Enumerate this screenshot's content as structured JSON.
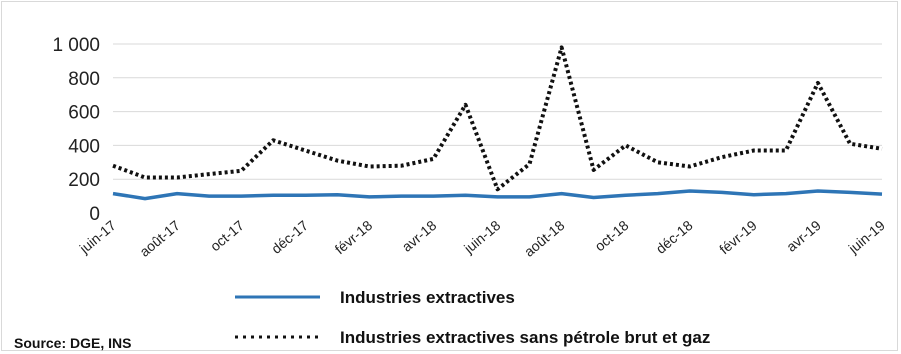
{
  "source": "Source: DGE, INS",
  "chart_data": {
    "type": "line",
    "title": "",
    "xlabel": "",
    "ylabel": "",
    "ylim": [
      0,
      1000
    ],
    "yticks": [
      "0",
      "200",
      "400",
      "600",
      "800",
      "1 000"
    ],
    "grid": true,
    "legend_position": "bottom",
    "x": [
      "juin-17",
      "juil-17",
      "août-17",
      "sept-17",
      "oct-17",
      "nov-17",
      "déc-17",
      "janv-18",
      "févr-18",
      "mars-18",
      "avr-18",
      "mai-18",
      "juin-18",
      "juil-18",
      "août-18",
      "sept-18",
      "oct-18",
      "nov-18",
      "déc-18",
      "janv-19",
      "févr-19",
      "mars-19",
      "avr-19",
      "mai-19",
      "juin-19"
    ],
    "x_tick_labels": [
      "juin-17",
      "août-17",
      "oct-17",
      "déc-17",
      "févr-18",
      "avr-18",
      "juin-18",
      "août-18",
      "oct-18",
      "déc-18",
      "févr-19",
      "avr-19",
      "juin-19"
    ],
    "series": [
      {
        "name": "Industries extractives",
        "color": "#2e75b6",
        "style": "solid",
        "values": [
          115,
          85,
          115,
          100,
          100,
          105,
          105,
          108,
          95,
          100,
          100,
          105,
          95,
          95,
          115,
          92,
          105,
          115,
          130,
          122,
          108,
          115,
          130,
          122,
          112
        ]
      },
      {
        "name": "Industries extractives sans pétrole brut et gaz",
        "color": "#111111",
        "style": "dotted",
        "values": [
          280,
          210,
          210,
          230,
          250,
          430,
          370,
          310,
          275,
          280,
          320,
          640,
          140,
          290,
          980,
          255,
          400,
          300,
          275,
          330,
          370,
          370,
          770,
          410,
          380
        ]
      }
    ]
  }
}
